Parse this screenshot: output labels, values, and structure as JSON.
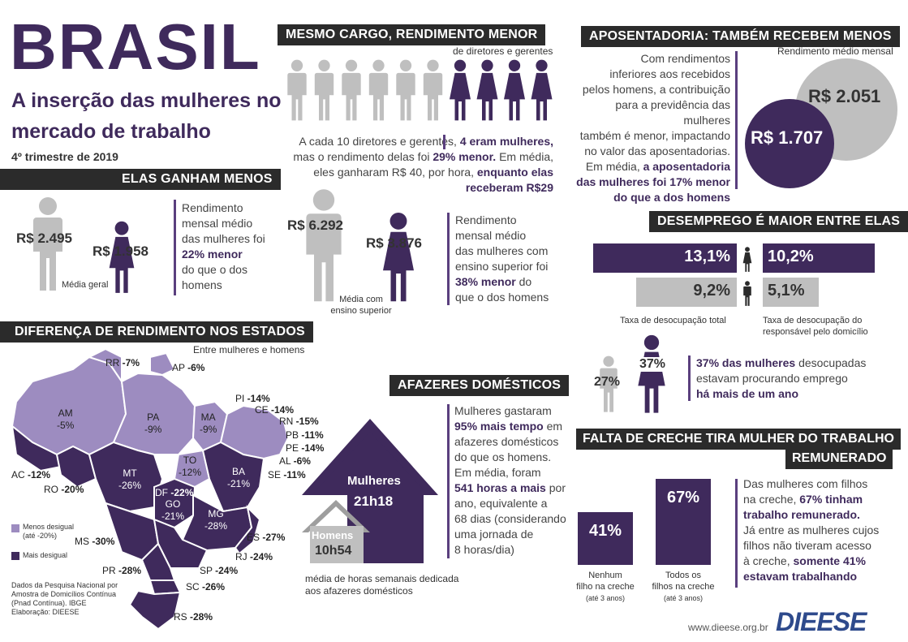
{
  "colors": {
    "dark_purple": "#3f2a5c",
    "light_purple": "#9d8cc0",
    "grey": "#bfbfbf",
    "bar_black": "#2b2b2b"
  },
  "header": {
    "title": "BRASIL",
    "subtitle_line1": "A inserção das mulheres no",
    "subtitle_line2": "mercado de trabalho",
    "period": "4º trimestre de 2019"
  },
  "mesmo_cargo": {
    "title": "MESMO CARGO, RENDIMENTO MENOR",
    "caption": "de diretores e gerentes",
    "men_count": 6,
    "women_count": 4,
    "text_1": "A cada 10 diretores e gerentes,",
    "text_2": "4 eram mulheres,",
    "text_3": "mas o rendimento delas foi",
    "text_4": "29% menor.",
    "text_5": "Em média,",
    "text_6": "eles ganharam R$ 40, por hora,",
    "text_7": "enquanto elas",
    "text_8": "receberam R$29"
  },
  "aposentadoria": {
    "title": "APOSENTADORIA: TAMBÉM RECEBEM MENOS",
    "caption": "Rendimento médio mensal",
    "men_value": "R$ 2.051",
    "women_value": "R$ 1.707",
    "text_1": "Com rendimentos",
    "text_2": "inferiores aos recebidos",
    "text_3": "pelos homens, a contribuição",
    "text_4": "para a previdência das mulheres",
    "text_5": "também é menor, impactando",
    "text_6": "no valor das aposentadorias.",
    "text_7": "Em média,",
    "text_8": "a aposentadoria",
    "text_9": "das mulheres foi 17% menor",
    "text_10": "do que a dos homens"
  },
  "ganham_menos": {
    "title": "ELAS GANHAM MENOS",
    "men_general": "R$ 2.495",
    "women_general": "R$ 1.958",
    "general_caption": "Média geral",
    "general_text_1": "Rendimento",
    "general_text_2": "mensal médio",
    "general_text_3": "das mulheres foi",
    "general_text_4": "22% menor",
    "general_text_5": "do que o dos",
    "general_text_6": "homens",
    "men_superior": "R$ 6.292",
    "women_superior": "R$ 3.876",
    "superior_caption_1": "Média com",
    "superior_caption_2": "ensino superior",
    "superior_text_1": "Rendimento",
    "superior_text_2": "mensal médio",
    "superior_text_3": "das mulheres com",
    "superior_text_4": "ensino superior foi",
    "superior_text_5": "38% menor",
    "superior_text_6": "do",
    "superior_text_7": "que o dos homens"
  },
  "desemprego": {
    "title": "DESEMPREGO É MAIOR ENTRE ELAS",
    "women_total": "13,1%",
    "women_total_value": 13.1,
    "women_resp": "10,2%",
    "women_resp_value": 10.2,
    "men_total": "9,2%",
    "men_total_value": 9.2,
    "men_resp": "5,1%",
    "men_resp_value": 5.1,
    "caption_total": "Taxa de desocupação total",
    "caption_resp_1": "Taxa de desocupação do",
    "caption_resp_2": "responsável pelo domicílio",
    "men_search": "27%",
    "women_search": "37%",
    "search_text_1": "37% das mulheres",
    "search_text_2": "desocupadas",
    "search_text_3": "estavam procurando emprego",
    "search_text_4": "há mais de um ano"
  },
  "estados": {
    "title": "DIFERENÇA DE RENDIMENTO NOS ESTADOS",
    "caption": "Entre mulheres e homens",
    "legend_light_1": "Menos desigual",
    "legend_light_2": "(até -20%)",
    "legend_dark": "Mais desigual",
    "source_1": "Dados da Pesquisa Nacional por",
    "source_2": "Amostra de Domicílios Contínua",
    "source_3": "(Pnad Contínua). IBGE",
    "source_4": "Elaboração: DIEESE",
    "states": {
      "RR": "-7%",
      "AP": "-6%",
      "AM": "-5%",
      "PA": "-9%",
      "MA": "-9%",
      "PI": "-14%",
      "CE": "-14%",
      "RN": "-15%",
      "PB": "-11%",
      "PE": "-14%",
      "AL": "-6%",
      "SE": "-11%",
      "AC": "-12%",
      "RO": "-20%",
      "TO": "-12%",
      "MT": "-26%",
      "BA": "-21%",
      "DF": "-22%",
      "GO": "-21%",
      "MG": "-28%",
      "MS": "-30%",
      "ES": "-27%",
      "RJ": "-24%",
      "SP": "-24%",
      "PR": "-28%",
      "SC": "-26%",
      "RS": "-28%"
    }
  },
  "afazeres": {
    "title": "AFAZERES DOMÉSTICOS",
    "women_label": "Mulheres",
    "women_hours": "21h18",
    "men_label": "Homens",
    "men_hours": "10h54",
    "caption_1": "média de horas semanais dedicada",
    "caption_2": "aos afazeres domésticos",
    "text_1": "Mulheres gastaram",
    "text_2": "95% mais tempo",
    "text_3": "em",
    "text_4": "afazeres domésticos",
    "text_5": "do que os homens.",
    "text_6": "Em média, foram",
    "text_7": "541 horas a mais",
    "text_8": "por",
    "text_9": "ano, equivalente a",
    "text_10": "68 dias (considerando",
    "text_11": "uma jornada de",
    "text_12": "8 horas/dia)"
  },
  "creche": {
    "title_1": "FALTA DE CRECHE TIRA MULHER DO TRABALHO",
    "title_2": "REMUNERADO",
    "bar1_value": "41%",
    "bar1_num": 41,
    "bar1_label_1": "Nenhum",
    "bar1_label_2": "filho na creche",
    "bar1_label_3": "(até 3 anos)",
    "bar2_value": "67%",
    "bar2_num": 67,
    "bar2_label_1": "Todos os",
    "bar2_label_2": "filhos na creche",
    "bar2_label_3": "(até 3 anos)",
    "text_1": "Das mulheres com filhos",
    "text_2": "na creche,",
    "text_3": "67% tinham",
    "text_4": "trabalho remunerado.",
    "text_5": "Já entre as mulheres cujos",
    "text_6": "filhos não tiveram acesso",
    "text_7": "à creche,",
    "text_8": "somente 41%",
    "text_9": "estavam trabalhando"
  },
  "footer": {
    "url": "www.dieese.org.br",
    "logo": "DIEESE"
  }
}
